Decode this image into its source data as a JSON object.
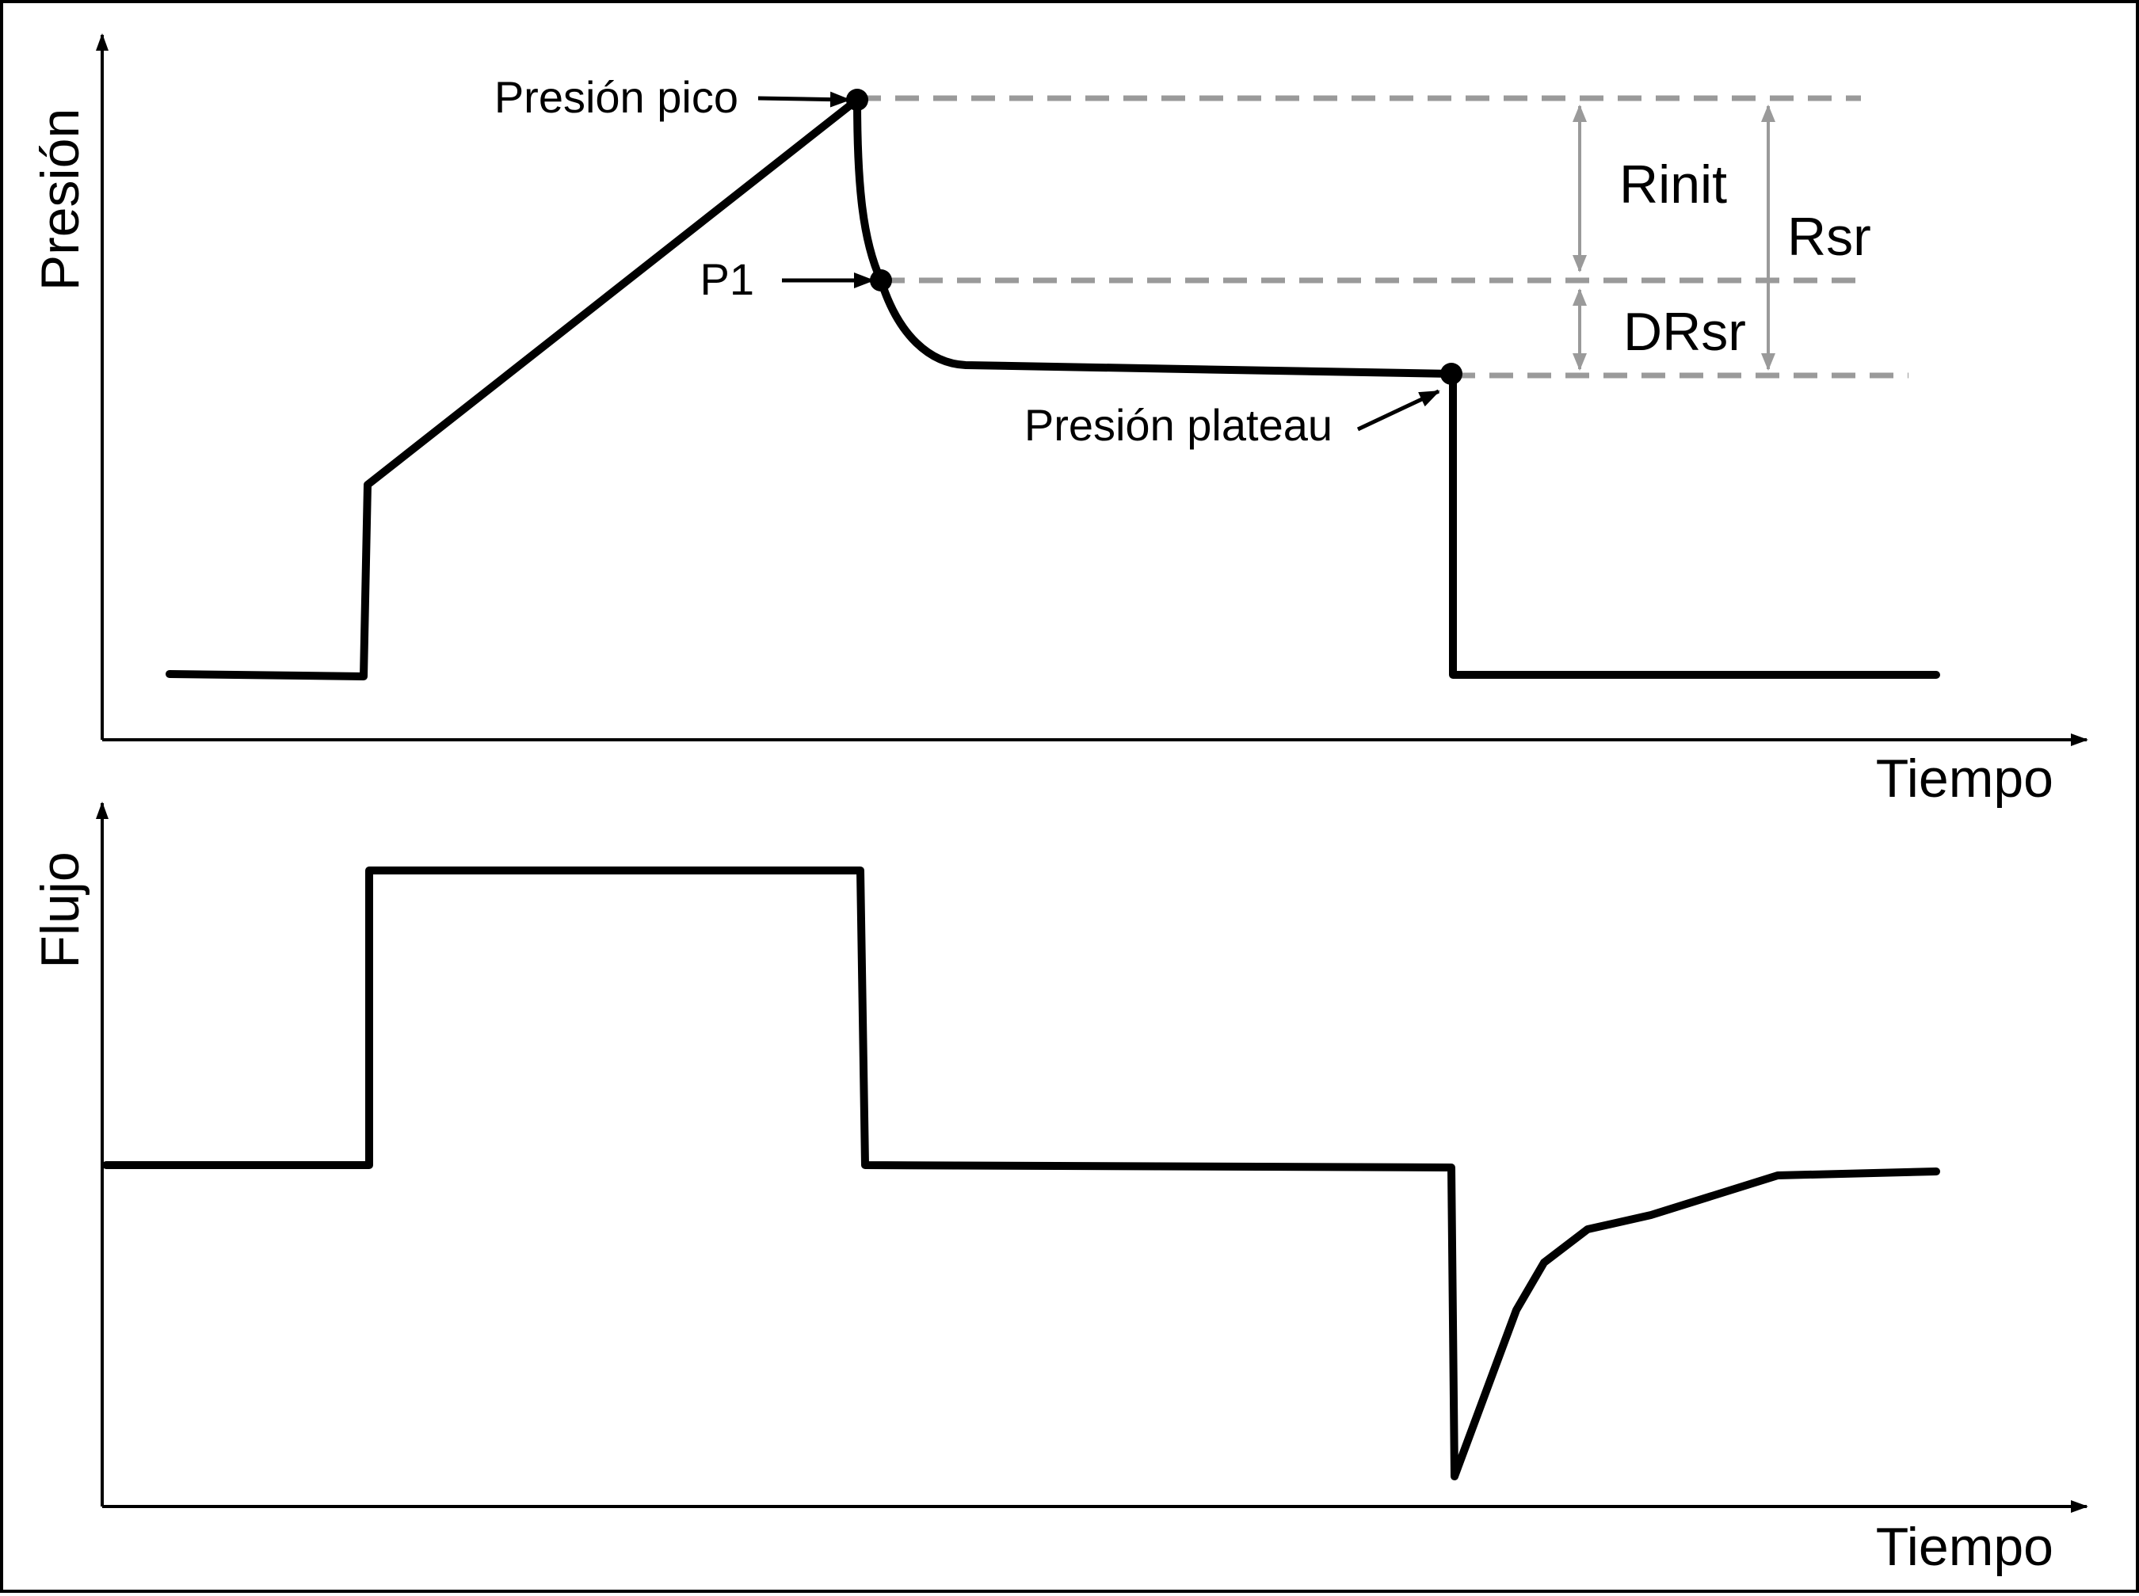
{
  "pressure_panel": {
    "y_axis_label": "Presión",
    "x_axis_label": "Tiempo",
    "annotations": {
      "peak": "Presión pico",
      "p1": "P1",
      "plateau": "Presión plateau",
      "rinit": "Rinit",
      "rsr": "Rsr",
      "drsr": "DRsr"
    }
  },
  "flow_panel": {
    "y_axis_label": "Flujo",
    "x_axis_label": "Tiempo"
  },
  "colors": {
    "waveform": "#000000",
    "reference_lines": "#9a9a9a"
  }
}
